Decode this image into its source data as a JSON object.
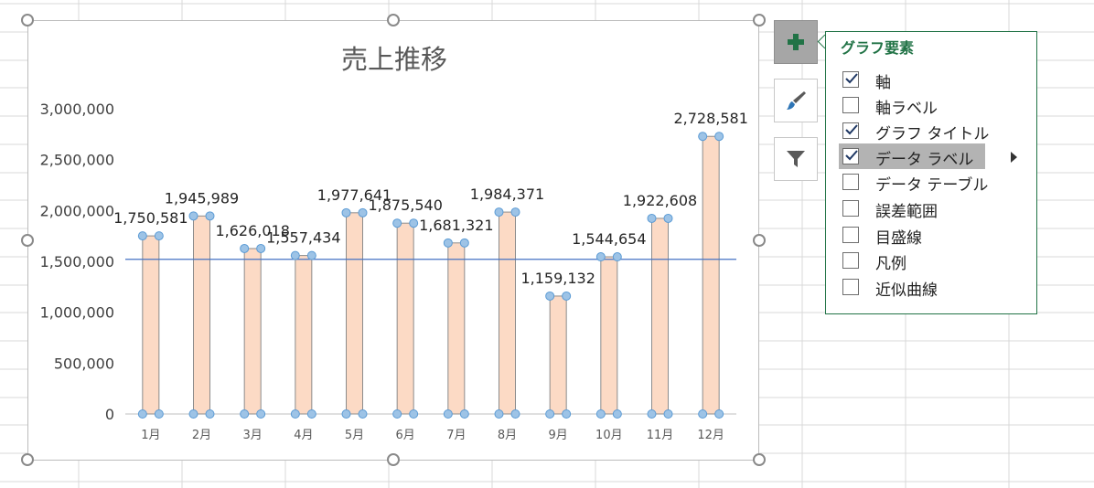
{
  "chart_data": {
    "type": "bar",
    "title": "売上推移",
    "categories": [
      "1月",
      "2月",
      "3月",
      "4月",
      "5月",
      "6月",
      "7月",
      "8月",
      "9月",
      "10月",
      "11月",
      "12月"
    ],
    "values": [
      1750581,
      1945989,
      1626018,
      1557434,
      1977641,
      1875540,
      1681321,
      1984371,
      1159132,
      1544654,
      1922608,
      2728581
    ],
    "data_labels": [
      "1,750,581",
      "1,945,989",
      "1,626,018",
      "1,557,434",
      "1,977,641",
      "1,875,540",
      "1,681,321",
      "1,984,371",
      "1,159,132",
      "1,544,654",
      "1,922,608",
      "2,728,581"
    ],
    "y_ticks": [
      0,
      500000,
      1000000,
      1500000,
      2000000,
      2500000,
      3000000
    ],
    "y_tick_labels": [
      "0",
      "500,000",
      "1,000,000",
      "1,500,000",
      "2,000,000",
      "2,500,000",
      "3,000,000"
    ],
    "ylim": [
      0,
      3000000
    ],
    "reference_line": 1520000,
    "grid": false,
    "legend": "none",
    "bar_color": "#fcdac5",
    "bar_edge_color": "#8c8c8c",
    "line_color": "#4472c4",
    "marker_color": "#9dc3e6",
    "marker_edge_color": "#5b9bd5"
  },
  "chart_tools": {
    "elements_icon": "plus-icon",
    "styles_icon": "paintbrush-icon",
    "filter_icon": "funnel-icon"
  },
  "chart_elements_panel": {
    "title": "グラフ要素",
    "items": [
      {
        "label": "軸",
        "checked": true
      },
      {
        "label": "軸ラベル",
        "checked": false
      },
      {
        "label": "グラフ タイトル",
        "checked": true
      },
      {
        "label": "データ ラベル",
        "checked": true,
        "selected": true
      },
      {
        "label": "データ テーブル",
        "checked": false
      },
      {
        "label": "誤差範囲",
        "checked": false
      },
      {
        "label": "目盛線",
        "checked": false
      },
      {
        "label": "凡例",
        "checked": false
      },
      {
        "label": "近似曲線",
        "checked": false
      }
    ]
  },
  "colors": {
    "accent_green": "#217346"
  }
}
